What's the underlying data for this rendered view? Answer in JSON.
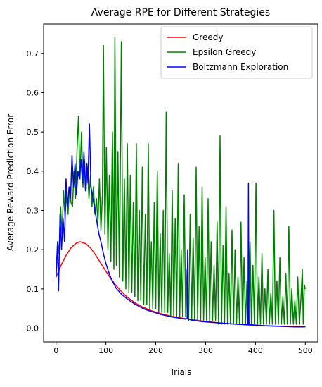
{
  "chart_data": {
    "type": "line",
    "title": "Average RPE for Different Strategies",
    "xlabel": "Trials",
    "ylabel": "Average Reward Prediction Error",
    "xlim": [
      -25,
      525
    ],
    "ylim": [
      -0.035,
      0.775
    ],
    "xticks": [
      "0",
      "100",
      "200",
      "300",
      "400",
      "500"
    ],
    "yticks": [
      "0.0",
      "0.1",
      "0.2",
      "0.3",
      "0.4",
      "0.5",
      "0.6",
      "0.7"
    ],
    "legend_position": "top-right",
    "grid": false,
    "series": [
      {
        "name": "Greedy",
        "color": "#ff0000",
        "points": [
          [
            0,
            0.13
          ],
          [
            10,
            0.16
          ],
          [
            20,
            0.185
          ],
          [
            30,
            0.205
          ],
          [
            40,
            0.216
          ],
          [
            48,
            0.22
          ],
          [
            60,
            0.215
          ],
          [
            70,
            0.203
          ],
          [
            80,
            0.185
          ],
          [
            90,
            0.165
          ],
          [
            100,
            0.145
          ],
          [
            110,
            0.126
          ],
          [
            120,
            0.109
          ],
          [
            130,
            0.095
          ],
          [
            140,
            0.082
          ],
          [
            150,
            0.072
          ],
          [
            160,
            0.063
          ],
          [
            175,
            0.053
          ],
          [
            190,
            0.045
          ],
          [
            210,
            0.037
          ],
          [
            230,
            0.031
          ],
          [
            250,
            0.026
          ],
          [
            275,
            0.021
          ],
          [
            300,
            0.017
          ],
          [
            330,
            0.013
          ],
          [
            360,
            0.01
          ],
          [
            400,
            0.007
          ],
          [
            450,
            0.005
          ],
          [
            500,
            0.003
          ]
        ]
      },
      {
        "name": "Epsilon Greedy",
        "color": "#008000",
        "points": [
          [
            0,
            0.13
          ],
          [
            3,
            0.22
          ],
          [
            6,
            0.19
          ],
          [
            9,
            0.31
          ],
          [
            12,
            0.24
          ],
          [
            15,
            0.35
          ],
          [
            18,
            0.28
          ],
          [
            21,
            0.34
          ],
          [
            24,
            0.29
          ],
          [
            27,
            0.36
          ],
          [
            30,
            0.32
          ],
          [
            33,
            0.31
          ],
          [
            36,
            0.4
          ],
          [
            39,
            0.33
          ],
          [
            42,
            0.45
          ],
          [
            45,
            0.54
          ],
          [
            48,
            0.38
          ],
          [
            51,
            0.5
          ],
          [
            54,
            0.36
          ],
          [
            57,
            0.43
          ],
          [
            60,
            0.35
          ],
          [
            63,
            0.41
          ],
          [
            66,
            0.33
          ],
          [
            69,
            0.39
          ],
          [
            72,
            0.31
          ],
          [
            75,
            0.36
          ],
          [
            78,
            0.29
          ],
          [
            81,
            0.33
          ],
          [
            84,
            0.27
          ],
          [
            87,
            0.38
          ],
          [
            90,
            0.25
          ],
          [
            93,
            0.34
          ],
          [
            95,
            0.72
          ],
          [
            98,
            0.24
          ],
          [
            101,
            0.46
          ],
          [
            104,
            0.2
          ],
          [
            107,
            0.39
          ],
          [
            110,
            0.17
          ],
          [
            113,
            0.5
          ],
          [
            116,
            0.15
          ],
          [
            118,
            0.74
          ],
          [
            121,
            0.16
          ],
          [
            124,
            0.45
          ],
          [
            127,
            0.13
          ],
          [
            131,
            0.73
          ],
          [
            134,
            0.12
          ],
          [
            137,
            0.38
          ],
          [
            140,
            0.1
          ],
          [
            143,
            0.47
          ],
          [
            146,
            0.09
          ],
          [
            149,
            0.39
          ],
          [
            152,
            0.09
          ],
          [
            155,
            0.32
          ],
          [
            158,
            0.08
          ],
          [
            161,
            0.47
          ],
          [
            164,
            0.07
          ],
          [
            167,
            0.3
          ],
          [
            170,
            0.07
          ],
          [
            173,
            0.41
          ],
          [
            176,
            0.06
          ],
          [
            179,
            0.29
          ],
          [
            182,
            0.06
          ],
          [
            185,
            0.47
          ],
          [
            188,
            0.05
          ],
          [
            191,
            0.22
          ],
          [
            194,
            0.05
          ],
          [
            197,
            0.32
          ],
          [
            200,
            0.05
          ],
          [
            203,
            0.4
          ],
          [
            206,
            0.04
          ],
          [
            209,
            0.24
          ],
          [
            212,
            0.04
          ],
          [
            215,
            0.3
          ],
          [
            218,
            0.04
          ],
          [
            221,
            0.55
          ],
          [
            224,
            0.04
          ],
          [
            227,
            0.19
          ],
          [
            230,
            0.03
          ],
          [
            233,
            0.35
          ],
          [
            236,
            0.03
          ],
          [
            239,
            0.28
          ],
          [
            242,
            0.03
          ],
          [
            245,
            0.42
          ],
          [
            248,
            0.03
          ],
          [
            251,
            0.2
          ],
          [
            254,
            0.03
          ],
          [
            257,
            0.34
          ],
          [
            260,
            0.03
          ],
          [
            263,
            0.15
          ],
          [
            266,
            0.02
          ],
          [
            269,
            0.29
          ],
          [
            272,
            0.02
          ],
          [
            275,
            0.23
          ],
          [
            278,
            0.02
          ],
          [
            281,
            0.41
          ],
          [
            284,
            0.02
          ],
          [
            287,
            0.26
          ],
          [
            290,
            0.02
          ],
          [
            293,
            0.36
          ],
          [
            296,
            0.02
          ],
          [
            299,
            0.18
          ],
          [
            302,
            0.02
          ],
          [
            305,
            0.33
          ],
          [
            308,
            0.02
          ],
          [
            311,
            0.22
          ],
          [
            314,
            0.02
          ],
          [
            317,
            0.16
          ],
          [
            320,
            0.02
          ],
          [
            323,
            0.27
          ],
          [
            326,
            0.01
          ],
          [
            329,
            0.49
          ],
          [
            332,
            0.01
          ],
          [
            335,
            0.21
          ],
          [
            338,
            0.01
          ],
          [
            341,
            0.31
          ],
          [
            344,
            0.01
          ],
          [
            347,
            0.14
          ],
          [
            350,
            0.01
          ],
          [
            353,
            0.25
          ],
          [
            356,
            0.01
          ],
          [
            359,
            0.2
          ],
          [
            362,
            0.01
          ],
          [
            365,
            0.13
          ],
          [
            368,
            0.01
          ],
          [
            371,
            0.27
          ],
          [
            374,
            0.01
          ],
          [
            377,
            0.18
          ],
          [
            380,
            0.01
          ],
          [
            383,
            0.12
          ],
          [
            386,
            0.01
          ],
          [
            389,
            0.22
          ],
          [
            392,
            0.01
          ],
          [
            395,
            0.16
          ],
          [
            398,
            0.01
          ],
          [
            401,
            0.37
          ],
          [
            404,
            0.01
          ],
          [
            407,
            0.13
          ],
          [
            410,
            0.01
          ],
          [
            413,
            0.19
          ],
          [
            416,
            0.01
          ],
          [
            419,
            0.1
          ],
          [
            422,
            0.01
          ],
          [
            425,
            0.15
          ],
          [
            428,
            0.01
          ],
          [
            431,
            0.09
          ],
          [
            434,
            0.01
          ],
          [
            437,
            0.3
          ],
          [
            440,
            0.01
          ],
          [
            443,
            0.12
          ],
          [
            446,
            0.01
          ],
          [
            449,
            0.18
          ],
          [
            452,
            0.01
          ],
          [
            455,
            0.08
          ],
          [
            458,
            0.01
          ],
          [
            461,
            0.14
          ],
          [
            464,
            0.01
          ],
          [
            467,
            0.26
          ],
          [
            470,
            0.01
          ],
          [
            473,
            0.1
          ],
          [
            476,
            0.01
          ],
          [
            479,
            0.07
          ],
          [
            482,
            0.01
          ],
          [
            485,
            0.13
          ],
          [
            488,
            0.01
          ],
          [
            491,
            0.07
          ],
          [
            494,
            0.15
          ],
          [
            496,
            0.01
          ],
          [
            498,
            0.11
          ],
          [
            500,
            0.1
          ]
        ]
      },
      {
        "name": "Boltzmann Exploration",
        "color": "#0000ff",
        "points": [
          [
            0,
            0.13
          ],
          [
            3,
            0.22
          ],
          [
            5,
            0.095
          ],
          [
            8,
            0.29
          ],
          [
            11,
            0.2
          ],
          [
            14,
            0.28
          ],
          [
            17,
            0.22
          ],
          [
            20,
            0.38
          ],
          [
            23,
            0.31
          ],
          [
            26,
            0.36
          ],
          [
            29,
            0.33
          ],
          [
            32,
            0.44
          ],
          [
            35,
            0.36
          ],
          [
            38,
            0.42
          ],
          [
            41,
            0.34
          ],
          [
            44,
            0.4
          ],
          [
            47,
            0.38
          ],
          [
            50,
            0.43
          ],
          [
            53,
            0.37
          ],
          [
            56,
            0.45
          ],
          [
            59,
            0.35
          ],
          [
            62,
            0.42
          ],
          [
            64,
            0.37
          ],
          [
            67,
            0.52
          ],
          [
            70,
            0.36
          ],
          [
            74,
            0.33
          ],
          [
            78,
            0.3
          ],
          [
            82,
            0.27
          ],
          [
            86,
            0.24
          ],
          [
            90,
            0.22
          ],
          [
            95,
            0.19
          ],
          [
            100,
            0.165
          ],
          [
            105,
            0.145
          ],
          [
            110,
            0.128
          ],
          [
            115,
            0.115
          ],
          [
            120,
            0.103
          ],
          [
            130,
            0.088
          ],
          [
            140,
            0.077
          ],
          [
            150,
            0.068
          ],
          [
            160,
            0.06
          ],
          [
            170,
            0.053
          ],
          [
            180,
            0.047
          ],
          [
            190,
            0.043
          ],
          [
            200,
            0.039
          ],
          [
            210,
            0.035
          ],
          [
            220,
            0.032
          ],
          [
            230,
            0.029
          ],
          [
            240,
            0.027
          ],
          [
            250,
            0.025
          ],
          [
            260,
            0.023
          ],
          [
            263,
            0.025
          ],
          [
            264,
            0.2
          ],
          [
            265,
            0.023
          ],
          [
            270,
            0.021
          ],
          [
            280,
            0.019
          ],
          [
            290,
            0.017
          ],
          [
            300,
            0.016
          ],
          [
            320,
            0.014
          ],
          [
            340,
            0.012
          ],
          [
            360,
            0.01
          ],
          [
            380,
            0.009
          ],
          [
            385,
            0.009
          ],
          [
            386,
            0.37
          ],
          [
            387,
            0.009
          ],
          [
            400,
            0.008
          ],
          [
            420,
            0.006
          ],
          [
            440,
            0.005
          ],
          [
            460,
            0.004
          ],
          [
            480,
            0.003
          ],
          [
            500,
            0.003
          ]
        ]
      }
    ]
  }
}
